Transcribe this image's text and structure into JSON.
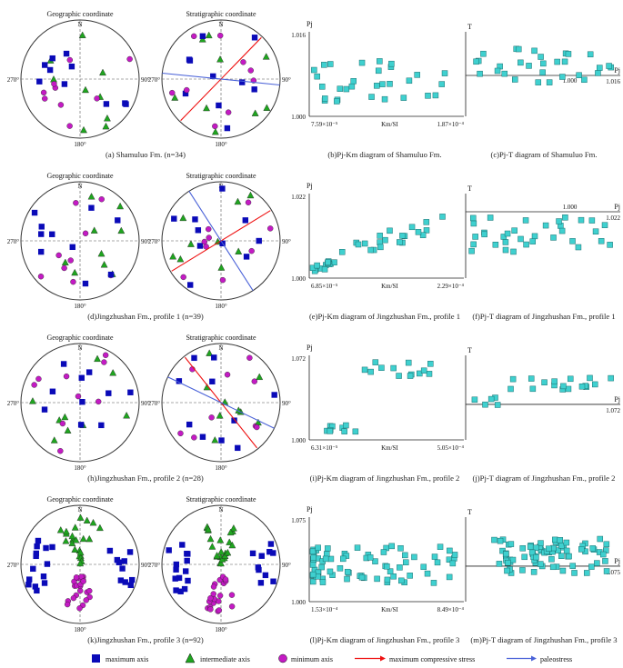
{
  "colors": {
    "max": "#0a0ab8",
    "mid": "#1fa51f",
    "min": "#c41ac4",
    "stress": "#ee1111",
    "paleo": "#4a62d8",
    "diag": "#3fd0cf"
  },
  "stereonet_labels": {
    "geographic": "Geographic coordinate",
    "stratigraphic": "Stratigraphic coordinate",
    "north": "N",
    "west": "270°",
    "east": "90°",
    "south": "180°"
  },
  "rows": [
    {
      "caption_a": "(a) Shamuluo Fm. (n=34)",
      "caption_b": "(b)Pj-Km diagram of Shamuluo Fm.",
      "caption_c": "(c)Pj-T diagram of Shamuluo Fm.",
      "pj_top": "1.016",
      "pj_bottom": "1.000",
      "km_left": "7.59×10⁻⁵",
      "km_mid": "Km/SI",
      "km_right": "1.87×10⁻⁴",
      "pt_pj": "1.016",
      "pt_pj_tick": "1.000"
    },
    {
      "caption_a": "(d)Jingzhushan Fm., profile 1 (n=39)",
      "caption_b": "(e)Pj-Km diagram of Jingzhushan Fm., profile 1",
      "caption_c": "(f)Pj-T diagram of Jingzhushan Fm., profile 1",
      "pj_top": "1.022",
      "pj_bottom": "1.000",
      "km_left": "6.85×10⁻⁵",
      "km_mid": "Km/SI",
      "km_right": "2.29×10⁻⁴",
      "pt_pj": "1.022",
      "pt_pj_tick": "1.000"
    },
    {
      "caption_a": "(h)Jingzhushan Fm., profile 2 (n=28)",
      "caption_b": "(i)Pj-Km diagram of Jingzhushan Fm., profile 2",
      "caption_c": "(j)Pj-T diagram of Jingzhushan Fm., profile 2",
      "pj_top": "1.072",
      "pj_bottom": "1.000",
      "km_left": "6.31×10⁻⁵",
      "km_mid": "Km/SI",
      "km_right": "5.05×10⁻⁴",
      "pt_pj": "1.072",
      "pt_pj_tick": ""
    },
    {
      "caption_a": "(k)Jingzhushan Fm., profile 3 (n=92)",
      "caption_b": "(l)Pj-Km diagram of Jingzhushan Fm., profile 3",
      "caption_c": "(m)Pj-T diagram of Jingzhushan Fm., profile 3",
      "pj_top": "1.075",
      "pj_bottom": "1.000",
      "km_left": "1.53×10⁻⁴",
      "km_mid": "Km/SI",
      "km_right": "8.49×10⁻⁴",
      "pt_pj": "1.075",
      "pt_pj_tick": ""
    }
  ],
  "axis_names": {
    "pj": "Pj",
    "t": "T"
  },
  "legend": {
    "max": "maximum axis",
    "mid": "intermediate axis",
    "min": "minimum axis",
    "stress": "maximum compressive stress",
    "paleo": "paleostress"
  }
}
